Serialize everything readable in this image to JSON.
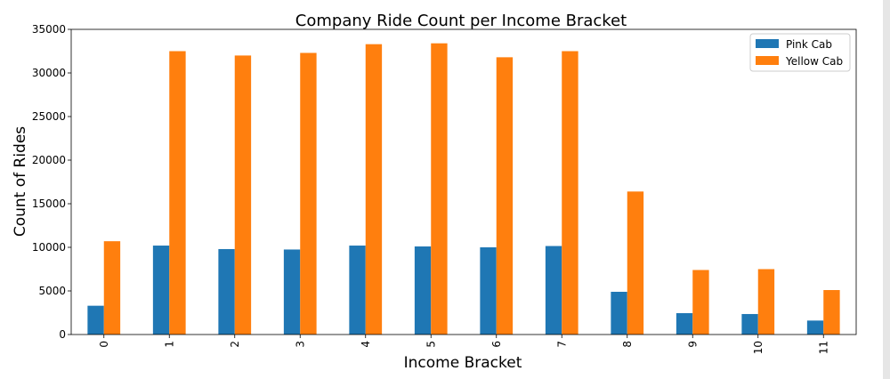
{
  "chart_data": {
    "type": "bar",
    "title": "Company Ride Count per Income Bracket",
    "xlabel": "Income Bracket",
    "ylabel": "Count of Rides",
    "categories": [
      "0",
      "1",
      "2",
      "3",
      "4",
      "5",
      "6",
      "7",
      "8",
      "9",
      "10",
      "11"
    ],
    "series": [
      {
        "name": "Pink Cab",
        "color": "#1f77b4",
        "values": [
          3300,
          10200,
          9800,
          9750,
          10200,
          10100,
          10000,
          10150,
          4900,
          2450,
          2350,
          1600
        ]
      },
      {
        "name": "Yellow Cab",
        "color": "#ff7f0e",
        "values": [
          10700,
          32500,
          32000,
          32300,
          33300,
          33400,
          31800,
          32500,
          16400,
          7400,
          7500,
          5100
        ]
      }
    ],
    "ylim": [
      0,
      35000
    ],
    "yticks": [
      0,
      5000,
      10000,
      15000,
      20000,
      25000,
      30000,
      35000
    ],
    "ytick_labels": [
      "0",
      "5000",
      "10000",
      "15000",
      "20000",
      "25000",
      "30000",
      "35000"
    ],
    "xtick_rotation": "vertical",
    "grid": false,
    "legend_position": "top-right"
  }
}
